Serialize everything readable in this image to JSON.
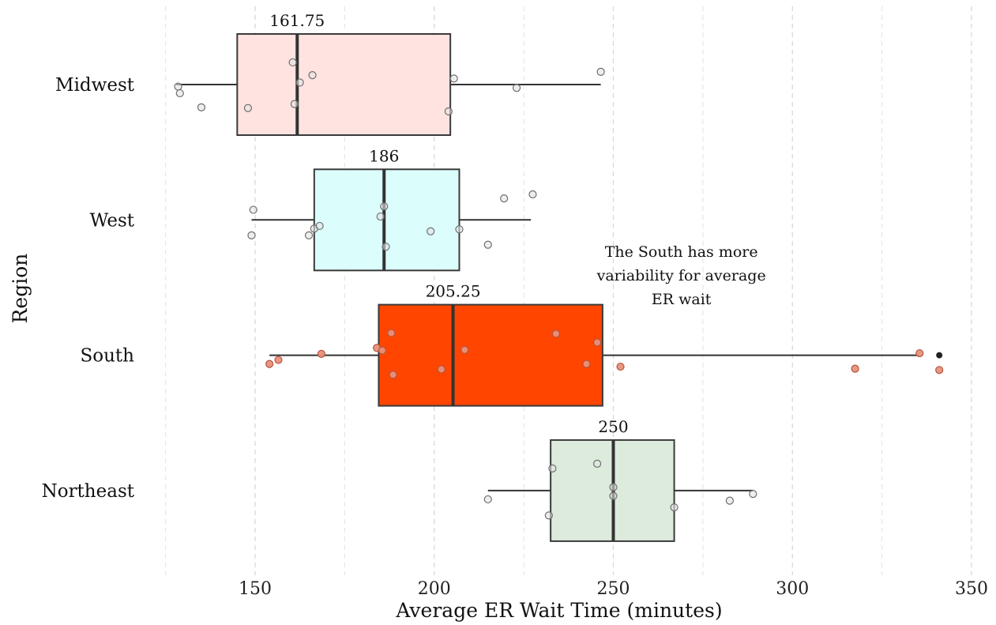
{
  "chart_data": {
    "type": "boxplot",
    "orientation": "horizontal",
    "xlabel": "Average ER Wait Time (minutes)",
    "ylabel": "Region",
    "xlim": [
      125,
      352
    ],
    "x_ticks": [
      150,
      200,
      250,
      300,
      350
    ],
    "grid": "vertical dashed",
    "categories": [
      "Midwest",
      "West",
      "South",
      "Northeast"
    ],
    "boxes": [
      {
        "category": "Midwest",
        "whisker_low": 128,
        "q1": 145,
        "median": 161.75,
        "q3": 204.5,
        "whisker_high": 246.5,
        "median_label": "161.75",
        "fill": "#ffe3e1",
        "outliers": [],
        "points": [
          [
            128.5,
            -0.03
          ],
          [
            129,
            -0.13
          ],
          [
            135,
            -0.34
          ],
          [
            148,
            -0.35
          ],
          [
            160.5,
            0.33
          ],
          [
            161,
            -0.29
          ],
          [
            162.5,
            0.03
          ],
          [
            166,
            0.14
          ],
          [
            204,
            -0.4
          ],
          [
            205.5,
            0.09
          ],
          [
            223,
            -0.05
          ],
          [
            246.5,
            0.19
          ]
        ]
      },
      {
        "category": "West",
        "whisker_low": 149,
        "q1": 166.5,
        "median": 186,
        "q3": 207,
        "whisker_high": 227,
        "median_label": "186",
        "fill": "#dbfdfc",
        "outliers": [],
        "points": [
          [
            149,
            -0.23
          ],
          [
            149.5,
            0.15
          ],
          [
            165,
            -0.23
          ],
          [
            166.5,
            -0.13
          ],
          [
            168,
            -0.09
          ],
          [
            185,
            0.05
          ],
          [
            186,
            0.2
          ],
          [
            186.5,
            -0.4
          ],
          [
            199,
            -0.17
          ],
          [
            207,
            -0.14
          ],
          [
            215,
            -0.37
          ],
          [
            219.5,
            0.32
          ],
          [
            227.5,
            0.38
          ]
        ]
      },
      {
        "category": "South",
        "whisker_low": 154,
        "q1": 184.5,
        "median": 205.25,
        "q3": 247,
        "whisker_high": 335.5,
        "median_label": "205.25",
        "fill": "#ff4500",
        "outliers": [
          341
        ],
        "points": [
          [
            154,
            -0.13
          ],
          [
            156.5,
            -0.07
          ],
          [
            168.5,
            0.02
          ],
          [
            184,
            0.11
          ],
          [
            185.5,
            0.07
          ],
          [
            188,
            0.33
          ],
          [
            188.5,
            -0.29
          ],
          [
            202,
            -0.21
          ],
          [
            208.5,
            0.08
          ],
          [
            234,
            0.32
          ],
          [
            242.5,
            -0.13
          ],
          [
            245.5,
            0.19
          ],
          [
            252,
            -0.17
          ],
          [
            317.5,
            -0.2
          ],
          [
            335.5,
            0.03
          ],
          [
            341,
            -0.22
          ]
        ]
      },
      {
        "category": "Northeast",
        "whisker_low": 215,
        "q1": 232.5,
        "median": 250,
        "q3": 267,
        "whisker_high": 289,
        "median_label": "250",
        "fill": "#dcebdc",
        "outliers": [],
        "points": [
          [
            215,
            -0.13
          ],
          [
            232,
            -0.37
          ],
          [
            233,
            0.33
          ],
          [
            245.5,
            0.4
          ],
          [
            250,
            0.05
          ],
          [
            250,
            -0.08
          ],
          [
            267,
            -0.25
          ],
          [
            282.5,
            -0.15
          ],
          [
            289,
            -0.05
          ]
        ]
      }
    ],
    "annotation": {
      "lines": [
        "The South has more",
        "variability for average",
        "ER wait"
      ],
      "x": 269,
      "y_category": "West",
      "y_offset": -0.27
    }
  }
}
